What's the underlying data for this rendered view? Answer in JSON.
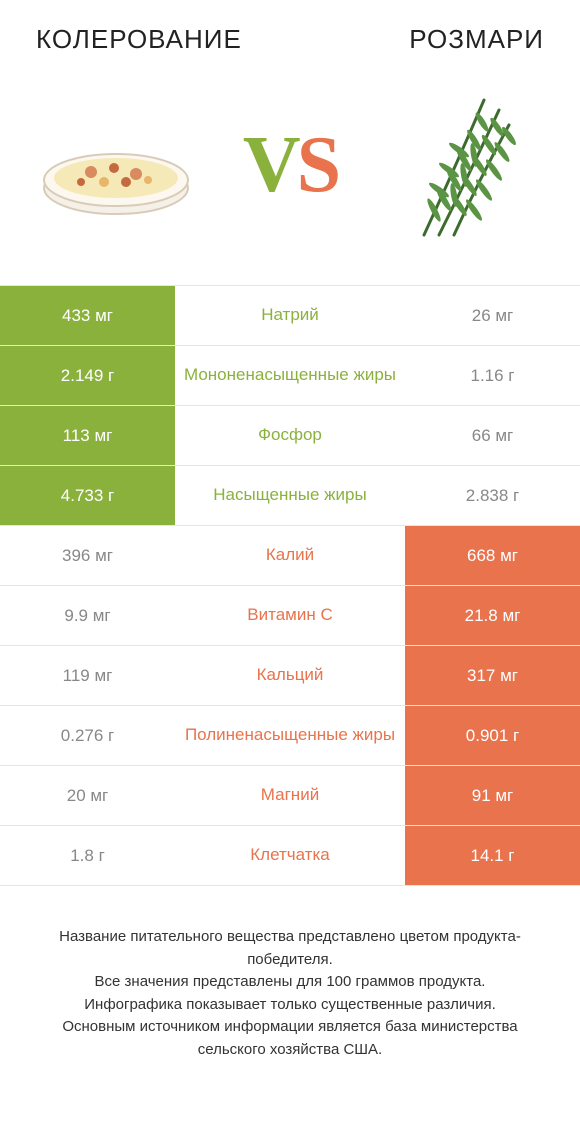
{
  "titles": {
    "left": "КОЛЕРОВАНИЕ",
    "right": "РОЗМАРИ"
  },
  "vs": {
    "v": "V",
    "s": "S"
  },
  "colors": {
    "green": "#8bb13d",
    "orange": "#e8734c",
    "white": "#ffffff"
  },
  "rows": [
    {
      "left": "433 мг",
      "label": "Натрий",
      "right": "26 мг",
      "winner": "left"
    },
    {
      "left": "2.149 г",
      "label": "Мононенасыщенные жиры",
      "right": "1.16 г",
      "winner": "left"
    },
    {
      "left": "113 мг",
      "label": "Фосфор",
      "right": "66 мг",
      "winner": "left"
    },
    {
      "left": "4.733 г",
      "label": "Насыщенные жиры",
      "right": "2.838 г",
      "winner": "left"
    },
    {
      "left": "396 мг",
      "label": "Калий",
      "right": "668 мг",
      "winner": "right"
    },
    {
      "left": "9.9 мг",
      "label": "Витамин C",
      "right": "21.8 мг",
      "winner": "right"
    },
    {
      "left": "119 мг",
      "label": "Кальций",
      "right": "317 мг",
      "winner": "right"
    },
    {
      "left": "0.276 г",
      "label": "Полиненасыщенные жиры",
      "right": "0.901 г",
      "winner": "right"
    },
    {
      "left": "20 мг",
      "label": "Магний",
      "right": "91 мг",
      "winner": "right"
    },
    {
      "left": "1.8 г",
      "label": "Клетчатка",
      "right": "14.1 г",
      "winner": "right"
    }
  ],
  "footer": {
    "l1": "Название питательного вещества представлено цветом продукта-победителя.",
    "l2": "Все значения представлены для 100 граммов продукта.",
    "l3": "Инфографика показывает только существенные различия.",
    "l4": "Основным источником информации является база министерства сельского хозяйства США."
  }
}
